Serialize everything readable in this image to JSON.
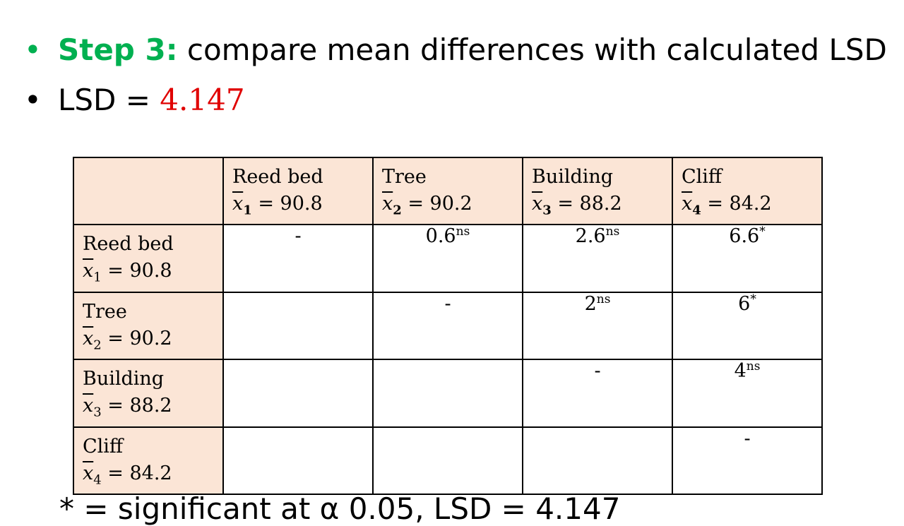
{
  "bullets": {
    "step_label": "Step 3:",
    "step_text": " compare mean differences with calculated LSD",
    "lsd_label": "LSD = ",
    "lsd_value": "4.147",
    "bullet_glyph": "•"
  },
  "table": {
    "columns": [
      {
        "name": "Reed bed",
        "xbar": "x",
        "sub": "1",
        "mean": " = 90.8"
      },
      {
        "name": "Tree",
        "xbar": "x",
        "sub": "2",
        "mean": " = 90.2"
      },
      {
        "name": "Building",
        "xbar": "x",
        "sub": "3",
        "mean": " = 88.2"
      },
      {
        "name": "Cliff",
        "xbar": "x",
        "sub": "4",
        "mean": " = 84.2"
      }
    ],
    "rows": [
      {
        "name": "Reed bed",
        "xbar": "x",
        "sub": "1",
        "mean": " = 90.8",
        "cells": [
          {
            "v": "-",
            "s": ""
          },
          {
            "v": "0.6",
            "s": "ns"
          },
          {
            "v": "2.6",
            "s": "ns"
          },
          {
            "v": "6.6",
            "s": "*"
          }
        ]
      },
      {
        "name": "Tree",
        "xbar": "x",
        "sub": "2",
        "mean": " = 90.2",
        "cells": [
          {
            "v": "",
            "s": ""
          },
          {
            "v": "-",
            "s": ""
          },
          {
            "v": "2",
            "s": "ns"
          },
          {
            "v": "6",
            "s": "*"
          }
        ]
      },
      {
        "name": "Building",
        "xbar": "x",
        "sub": "3",
        "mean": " = 88.2",
        "cells": [
          {
            "v": "",
            "s": ""
          },
          {
            "v": "",
            "s": ""
          },
          {
            "v": "-",
            "s": ""
          },
          {
            "v": "4",
            "s": "ns"
          }
        ]
      },
      {
        "name": "Cliff",
        "xbar": "x",
        "sub": "4",
        "mean": " = 84.2",
        "cells": [
          {
            "v": "",
            "s": ""
          },
          {
            "v": "",
            "s": ""
          },
          {
            "v": "",
            "s": ""
          },
          {
            "v": "-",
            "s": ""
          }
        ]
      }
    ]
  },
  "footnote": "* = significant at α 0.05, LSD = 4.147",
  "colors": {
    "accent_green": "#00b050",
    "value_red": "#e00000",
    "header_fill": "#fbe5d6"
  }
}
